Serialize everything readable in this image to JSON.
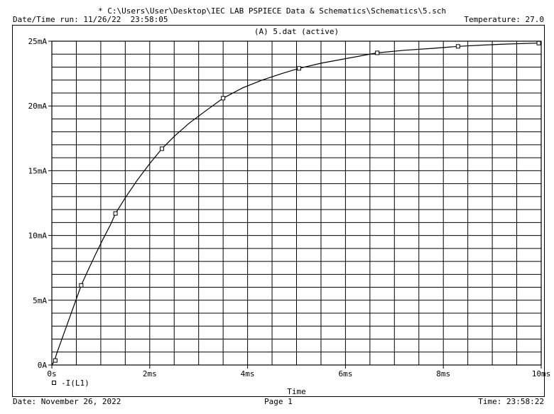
{
  "header": {
    "file_path": "* C:\\Users\\User\\Desktop\\IEC LAB PSPIECE Data & Schematics\\Schematics\\5.sch",
    "run_label": "Date/Time run: 11/26/22  23:58:05",
    "temperature": "Temperature: 27.0"
  },
  "footer": {
    "date": "Date: November 26, 2022",
    "page": "Page 1",
    "time": "Time: 23:58:22"
  },
  "chart_data": {
    "type": "line",
    "title": "(A) 5.dat (active)",
    "xlabel": "Time",
    "ylabel": "",
    "xlim": [
      0,
      10
    ],
    "ylim": [
      0,
      25
    ],
    "x_ticks": [
      0,
      2,
      4,
      6,
      8,
      10
    ],
    "x_tick_labels": [
      "0s",
      "2ms",
      "4ms",
      "6ms",
      "8ms",
      "10ms"
    ],
    "y_ticks": [
      0,
      5,
      10,
      15,
      20,
      25
    ],
    "y_tick_labels": [
      "0A",
      "5mA",
      "10mA",
      "15mA",
      "20mA",
      "25mA"
    ],
    "grid": true,
    "legend_position": "bottom-left",
    "series": [
      {
        "name": "-I(L1)",
        "marker": "square",
        "color": "#000000",
        "x": [
          0.07,
          0.6,
          1.3,
          2.25,
          3.5,
          5.05,
          6.65,
          8.3,
          9.95
        ],
        "y": [
          0.35,
          6.15,
          11.7,
          16.7,
          20.6,
          22.9,
          24.1,
          24.6,
          24.85
        ],
        "curve_x": [
          0,
          0.05,
          0.1,
          0.2,
          0.3,
          0.4,
          0.5,
          0.6,
          0.75,
          0.9,
          1.05,
          1.2,
          1.3,
          1.5,
          1.75,
          2.0,
          2.25,
          2.5,
          2.8,
          3.1,
          3.5,
          3.9,
          4.3,
          4.7,
          5.05,
          5.5,
          6.0,
          6.65,
          7.2,
          7.8,
          8.3,
          8.8,
          9.3,
          9.95,
          10.0
        ],
        "curve_y": [
          0,
          0.28,
          0.9,
          1.95,
          3.0,
          4.05,
          5.1,
          6.15,
          7.4,
          8.6,
          9.75,
          10.85,
          11.7,
          12.9,
          14.3,
          15.55,
          16.7,
          17.65,
          18.65,
          19.5,
          20.6,
          21.4,
          22.0,
          22.5,
          22.9,
          23.3,
          23.65,
          24.1,
          24.3,
          24.45,
          24.6,
          24.7,
          24.78,
          24.85,
          24.86
        ]
      }
    ]
  }
}
